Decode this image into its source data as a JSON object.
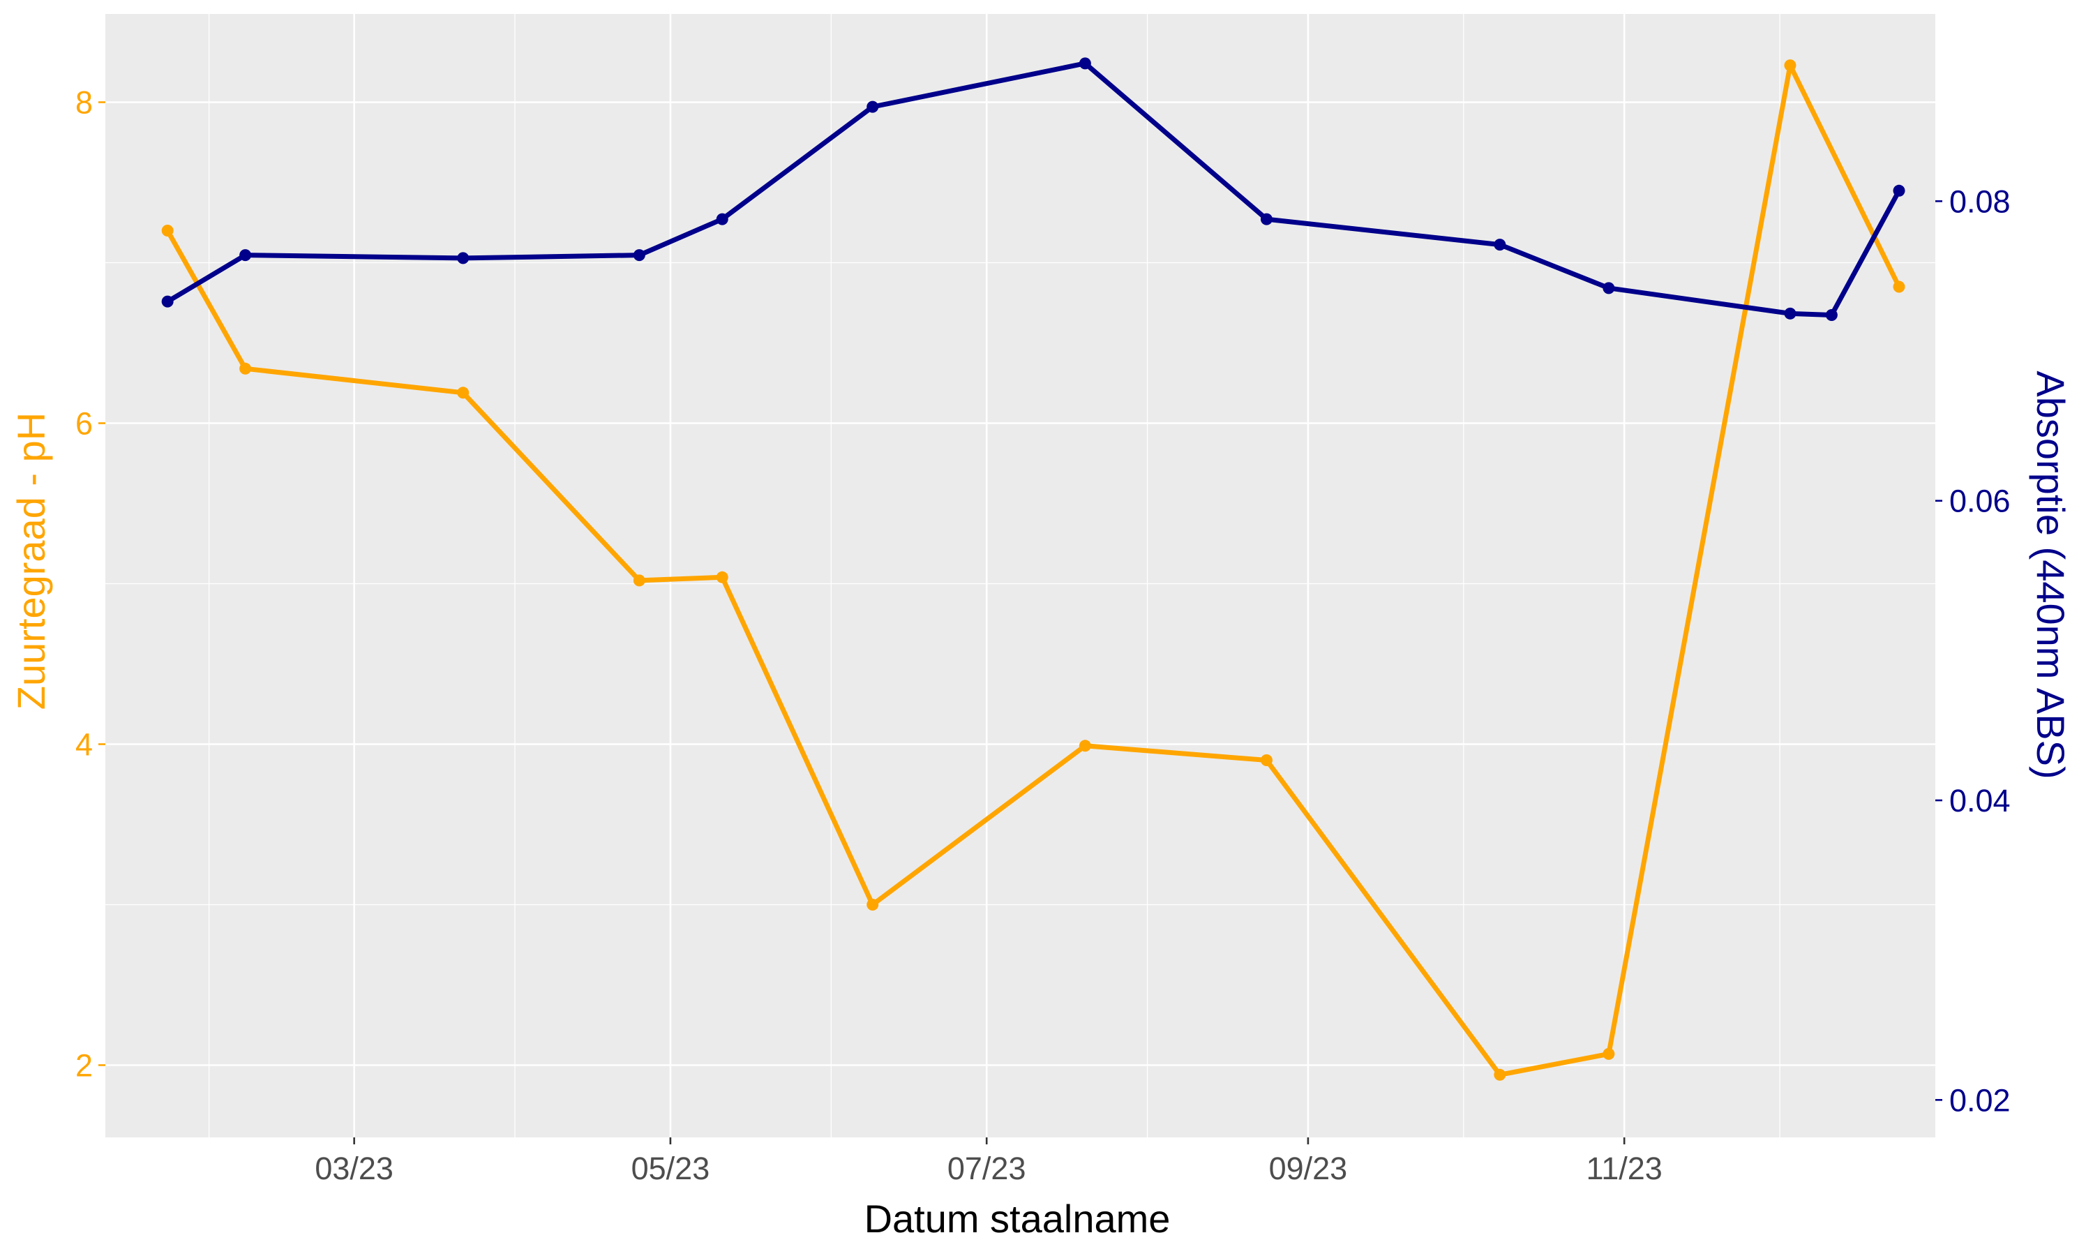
{
  "chart_data": {
    "type": "line",
    "xlabel": "Datum staalname",
    "ylabel_left": "Zuurtegraad - pH",
    "ylabel_right": "Absorptie (440nm ABS)",
    "x_ticks": [
      {
        "date": "2023-03-01",
        "label": "03/23"
      },
      {
        "date": "2023-05-01",
        "label": "05/23"
      },
      {
        "date": "2023-07-01",
        "label": "07/23"
      },
      {
        "date": "2023-09-01",
        "label": "09/23"
      },
      {
        "date": "2023-11-01",
        "label": "11/23"
      }
    ],
    "x_minor_grid_dates": [
      "2023-02-01",
      "2023-04-01",
      "2023-06-01",
      "2023-08-01",
      "2023-10-01",
      "2023-12-01"
    ],
    "x_range": [
      "2023-01-12",
      "2023-12-31"
    ],
    "y_left": {
      "range": [
        1.55,
        8.55
      ],
      "ticks": [
        2,
        4,
        6,
        8
      ],
      "minor": [
        3,
        5,
        7
      ],
      "color": "#FFA500"
    },
    "y_right": {
      "range": [
        0.0175,
        0.0925
      ],
      "ticks": [
        0.02,
        0.04,
        0.06,
        0.08
      ],
      "tick_labels": [
        "0.02",
        "0.04",
        "0.06",
        "0.08"
      ],
      "minor": [
        0.03,
        0.05,
        0.07
      ],
      "color": "#00008B"
    },
    "grid": true,
    "legend": "none",
    "series": [
      {
        "axis": "left",
        "color": "#FFA500",
        "points": [
          {
            "x": "2023-01-24",
            "y": 7.2
          },
          {
            "x": "2023-02-08",
            "y": 6.34
          },
          {
            "x": "2023-03-22",
            "y": 6.19
          },
          {
            "x": "2023-04-25",
            "y": 5.02
          },
          {
            "x": "2023-05-11",
            "y": 5.04
          },
          {
            "x": "2023-06-09",
            "y": 3.0
          },
          {
            "x": "2023-07-20",
            "y": 3.99
          },
          {
            "x": "2023-08-24",
            "y": 3.9
          },
          {
            "x": "2023-10-08",
            "y": 1.94
          },
          {
            "x": "2023-10-29",
            "y": 2.07
          },
          {
            "x": "2023-12-03",
            "y": 8.23
          },
          {
            "x": "2023-12-24",
            "y": 6.85
          }
        ]
      },
      {
        "axis": "right",
        "color": "#00008B",
        "points": [
          {
            "x": "2023-01-24",
            "y": 0.0733
          },
          {
            "x": "2023-02-08",
            "y": 0.0764
          },
          {
            "x": "2023-03-22",
            "y": 0.0762
          },
          {
            "x": "2023-04-25",
            "y": 0.0764
          },
          {
            "x": "2023-05-11",
            "y": 0.0788
          },
          {
            "x": "2023-06-09",
            "y": 0.0863
          },
          {
            "x": "2023-07-20",
            "y": 0.0892
          },
          {
            "x": "2023-08-24",
            "y": 0.0788
          },
          {
            "x": "2023-10-08",
            "y": 0.0771
          },
          {
            "x": "2023-10-29",
            "y": 0.0742
          },
          {
            "x": "2023-12-03",
            "y": 0.0725
          },
          {
            "x": "2023-12-11",
            "y": 0.0724
          },
          {
            "x": "2023-12-24",
            "y": 0.0807
          }
        ]
      }
    ]
  }
}
